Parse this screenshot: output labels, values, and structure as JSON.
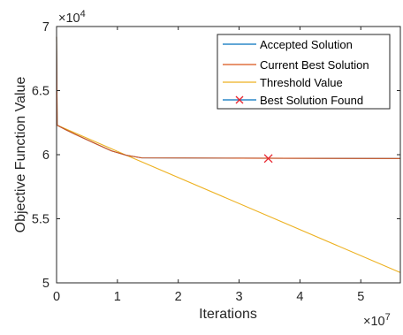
{
  "chart_data": {
    "type": "line",
    "title": "",
    "xlabel": "Iterations",
    "ylabel": "Objective Function Value",
    "xlim": [
      0,
      56500000
    ],
    "ylim": [
      50000,
      70000
    ],
    "x_exponent_label": "×10",
    "x_exponent": "7",
    "y_exponent_label": "×10",
    "y_exponent": "4",
    "x_ticks": [
      0,
      10000000,
      20000000,
      30000000,
      40000000,
      50000000
    ],
    "x_tick_labels": [
      "0",
      "1",
      "2",
      "3",
      "4",
      "5"
    ],
    "y_ticks": [
      50000,
      55000,
      60000,
      65000,
      70000
    ],
    "y_tick_labels": [
      "5",
      "5.5",
      "6",
      "6.5",
      "7"
    ],
    "grid": false,
    "legend_position": "top-right",
    "series": [
      {
        "name": "Accepted Solution",
        "color": "#0072BD",
        "x": [
          0,
          100000,
          500000,
          1500000,
          3000000,
          6000000,
          9000000,
          11500000,
          14000000,
          30000000,
          56500000
        ],
        "y": [
          69200,
          62300,
          62200,
          61950,
          61600,
          60950,
          60300,
          59950,
          59750,
          59730,
          59700
        ]
      },
      {
        "name": "Current Best Solution",
        "color": "#D95319",
        "x": [
          0,
          100000,
          500000,
          1500000,
          3000000,
          6000000,
          9000000,
          11500000,
          14000000,
          30000000,
          56500000
        ],
        "y": [
          69200,
          62300,
          62200,
          61950,
          61600,
          60950,
          60300,
          59950,
          59750,
          59730,
          59700
        ]
      },
      {
        "name": "Threshold Value",
        "color": "#EDB120",
        "x": [
          0,
          100000,
          11500000,
          56500000
        ],
        "y": [
          69200,
          62300,
          59950,
          50800
        ]
      }
    ],
    "best_point": {
      "name": "Best Solution Found",
      "color": "#E8252F",
      "x": 34800000,
      "y": 59700
    }
  }
}
